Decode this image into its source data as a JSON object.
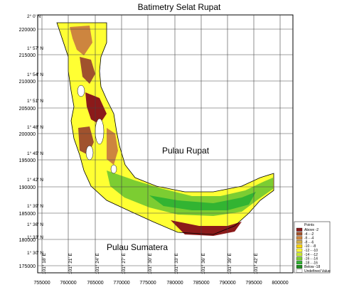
{
  "title": "Batimetry Selat Rupat",
  "y_ticks": [
    "220000",
    "215000",
    "210000",
    "205000",
    "200000",
    "195000",
    "190000",
    "185000",
    "180000",
    "175000"
  ],
  "x_ticks": [
    "755000",
    "760000",
    "765000",
    "770000",
    "775000",
    "780000",
    "785000",
    "790000",
    "795000",
    "800000"
  ],
  "lat_labels": [
    "2° 0' N",
    "1° 57' N",
    "1° 54' N",
    "1° 51' N",
    "1° 48' N",
    "1° 45' N",
    "1° 42' N",
    "1° 39' N",
    "1° 36' N",
    "1° 33' N",
    "1° 30' N"
  ],
  "lon_labels": [
    "101° 18' E",
    "101° 21' E",
    "101° 24' E",
    "101° 27' E",
    "101° 30' E",
    "101° 33' E",
    "101° 36' E",
    "101° 39' E",
    "101° 42' E"
  ],
  "places": {
    "rupat": "Pulau Rupat",
    "sumatera": "Pulau Sumatera"
  },
  "legend": {
    "title": "Points",
    "items": [
      {
        "label": "Above -2",
        "color": "#8b1a1a"
      },
      {
        "label": "-4 - -2",
        "color": "#a0522d"
      },
      {
        "label": "-6 - -4",
        "color": "#cd853f"
      },
      {
        "label": "-8 - -6",
        "color": "#d2b04c"
      },
      {
        "label": "-10 - -8",
        "color": "#ffd700"
      },
      {
        "label": "-12 - -10",
        "color": "#ffff33"
      },
      {
        "label": "-14 - -12",
        "color": "#c8e632"
      },
      {
        "label": "-16 - -14",
        "color": "#7ccd32"
      },
      {
        "label": "-18 - -16",
        "color": "#32b432"
      },
      {
        "label": "Below -18",
        "color": "#1e8c1e"
      },
      {
        "label": "Undefined Value",
        "color": "#ffffff"
      }
    ]
  },
  "colors": {
    "shallow": "#8b1a1a",
    "mid": "#ffff33",
    "deep": "#32b432"
  }
}
